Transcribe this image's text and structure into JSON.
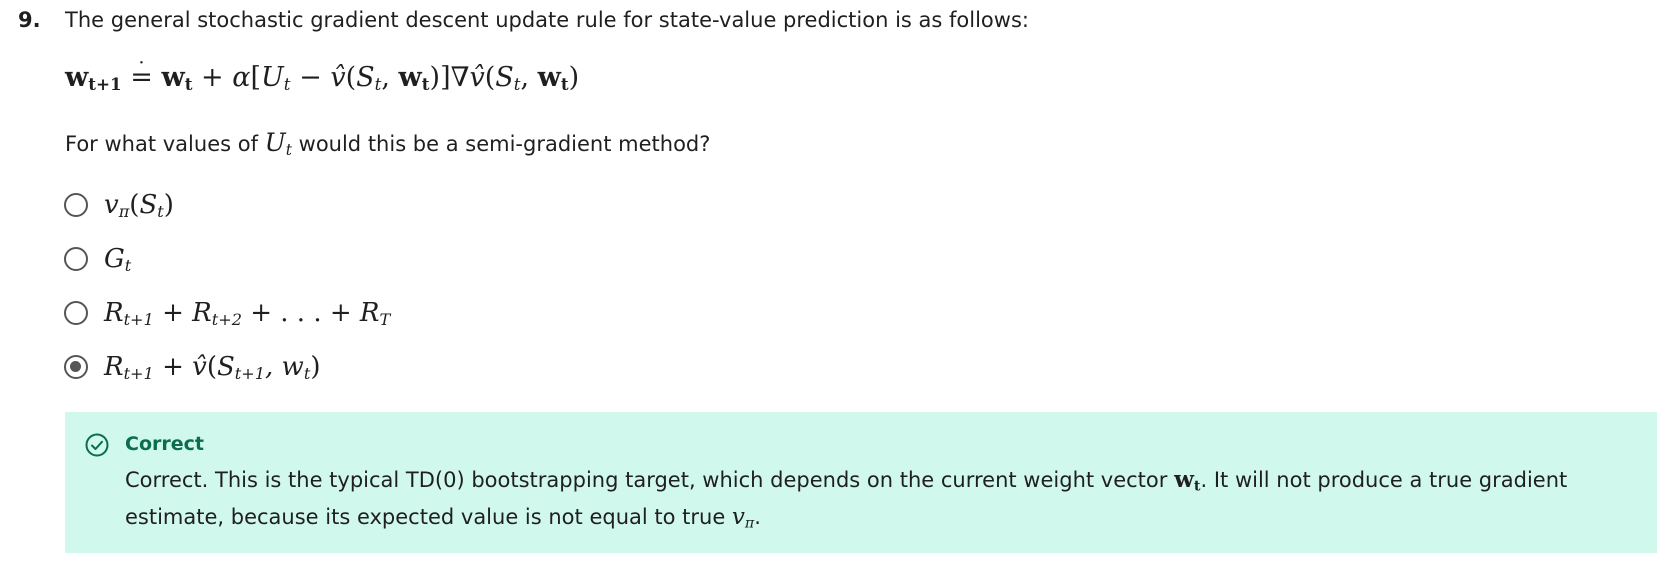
{
  "question": {
    "number": "9.",
    "text": "The general stochastic gradient descent update rule for state-value prediction is as follows:",
    "prompt_before": "For what values of ",
    "prompt_after": " would this be a semi-gradient method?"
  },
  "options": [
    {
      "id": "vpi",
      "selected": false
    },
    {
      "id": "G",
      "selected": false
    },
    {
      "id": "R-sum",
      "selected": false
    },
    {
      "id": "td0",
      "selected": true
    }
  ],
  "feedback": {
    "title": "Correct",
    "text_before": "Correct. This is the typical TD(0) bootstrapping target, which depends on the current weight vector ",
    "text_middle": ". It will not produce a true gradient estimate, because its expected value is not equal to true ",
    "text_after": ".",
    "color": "#0a6d4f",
    "background": "#d1f8ec",
    "icon": "check-circle-icon"
  }
}
